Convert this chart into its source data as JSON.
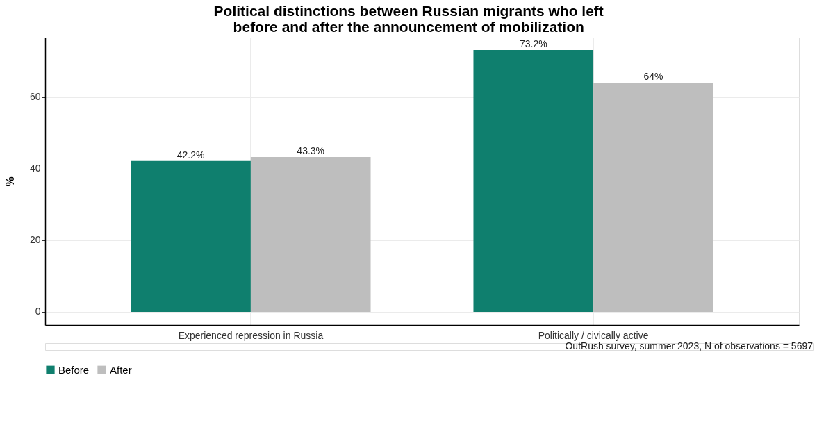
{
  "chart_data": {
    "type": "bar",
    "title": "Political distinctions between Russian migrants who left\nbefore and after the announcement of mobilization",
    "ylabel": "%",
    "categories": [
      "Experienced repression in Russia",
      "Politically / civically active"
    ],
    "series": [
      {
        "name": "Before",
        "color": "#0f7f6e",
        "values": [
          42.2,
          73.2
        ],
        "value_labels": [
          "42.2%",
          "73.2%"
        ]
      },
      {
        "name": "After",
        "color": "#bebebe",
        "values": [
          43.3,
          64
        ],
        "value_labels": [
          "43.3%",
          "64%"
        ]
      }
    ],
    "ylim": [
      -3.7,
      76.7
    ],
    "yticks": [
      0,
      20,
      40,
      60
    ],
    "grid": true,
    "legend": "bottom",
    "annotations": [
      "OutRush survey, summer 2023, N of observations =  5697"
    ]
  }
}
